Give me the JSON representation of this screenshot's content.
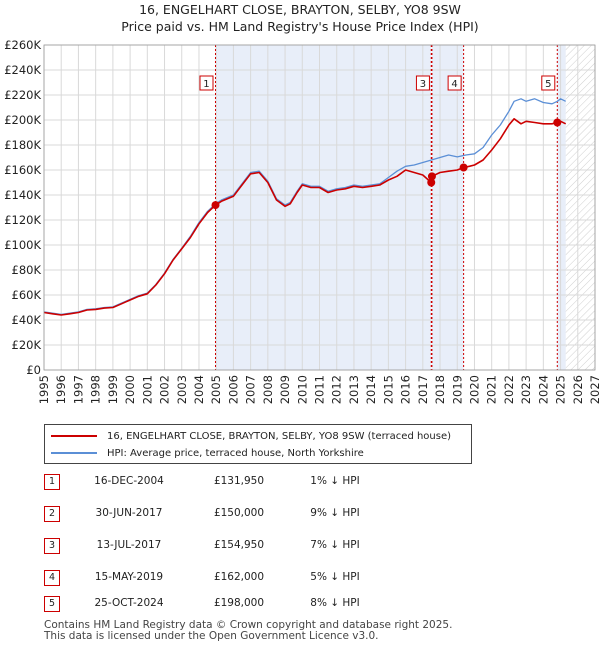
{
  "chart_data": {
    "type": "line",
    "title": "16, ENGELHART CLOSE, BRAYTON, SELBY, YO8 9SW",
    "subtitle": "Price paid vs. HM Land Registry's House Price Index (HPI)",
    "xlabel": "",
    "ylabel": "",
    "xlim": [
      1995,
      2027
    ],
    "ylim": [
      0,
      260000
    ],
    "x_ticks": [
      "1995",
      "1996",
      "1997",
      "1998",
      "1999",
      "2000",
      "2001",
      "2002",
      "2003",
      "2004",
      "2005",
      "2006",
      "2007",
      "2008",
      "2009",
      "2010",
      "2011",
      "2012",
      "2013",
      "2014",
      "2015",
      "2016",
      "2017",
      "2018",
      "2019",
      "2020",
      "2021",
      "2022",
      "2023",
      "2024",
      "2025",
      "2026",
      "2027"
    ],
    "y_ticks": [
      {
        "value": 0,
        "label": "£0"
      },
      {
        "value": 20000,
        "label": "£20K"
      },
      {
        "value": 40000,
        "label": "£40K"
      },
      {
        "value": 60000,
        "label": "£60K"
      },
      {
        "value": 80000,
        "label": "£80K"
      },
      {
        "value": 100000,
        "label": "£100K"
      },
      {
        "value": 120000,
        "label": "£120K"
      },
      {
        "value": 140000,
        "label": "£140K"
      },
      {
        "value": 160000,
        "label": "£160K"
      },
      {
        "value": 180000,
        "label": "£180K"
      },
      {
        "value": 200000,
        "label": "£200K"
      },
      {
        "value": 220000,
        "label": "£220K"
      },
      {
        "value": 240000,
        "label": "£240K"
      },
      {
        "value": 260000,
        "label": "£260K"
      }
    ],
    "grid": true,
    "series": [
      {
        "name": "16, ENGELHART CLOSE, BRAYTON, SELBY, YO8 9SW (terraced house)",
        "color": "#cc0000",
        "x": [
          1995.0,
          1995.5,
          1996.0,
          1996.5,
          1997.0,
          1997.5,
          1998.0,
          1998.5,
          1999.0,
          1999.5,
          2000.0,
          2000.5,
          2001.0,
          2001.5,
          2002.0,
          2002.5,
          2003.0,
          2003.5,
          2004.0,
          2004.5,
          2004.96,
          2005.3,
          2006.0,
          2006.5,
          2007.0,
          2007.5,
          2008.0,
          2008.5,
          2009.0,
          2009.3,
          2009.7,
          2010.0,
          2010.5,
          2011.0,
          2011.5,
          2012.0,
          2012.5,
          2013.0,
          2013.5,
          2014.0,
          2014.5,
          2015.0,
          2015.5,
          2016.0,
          2016.5,
          2017.0,
          2017.49,
          2017.53,
          2018.0,
          2018.5,
          2019.0,
          2019.37,
          2019.7,
          2020.0,
          2020.5,
          2021.0,
          2021.5,
          2022.0,
          2022.3,
          2022.7,
          2023.0,
          2023.5,
          2024.0,
          2024.5,
          2024.81,
          2025.0,
          2025.3
        ],
        "values": [
          46000,
          45000,
          44000,
          45000,
          46000,
          48000,
          48500,
          49500,
          50000,
          53000,
          56000,
          59000,
          61000,
          68000,
          77000,
          88000,
          97000,
          106000,
          117000,
          126000,
          131950,
          135000,
          139000,
          148000,
          157000,
          158000,
          150000,
          136000,
          131000,
          133000,
          142000,
          148000,
          146000,
          146000,
          142000,
          144000,
          145000,
          147000,
          146000,
          147000,
          148000,
          152000,
          155000,
          160000,
          158000,
          156000,
          150000,
          154950,
          158000,
          159000,
          160000,
          162000,
          163000,
          164000,
          168000,
          176000,
          185000,
          196000,
          201000,
          197000,
          199000,
          198000,
          197000,
          197000,
          198000,
          199000,
          197000
        ]
      },
      {
        "name": "HPI: Average price, terraced house, North Yorkshire",
        "color": "#5b8fd6",
        "x": [
          1995.0,
          1995.5,
          1996.0,
          1996.5,
          1997.0,
          1997.5,
          1998.0,
          1998.5,
          1999.0,
          1999.5,
          2000.0,
          2000.5,
          2001.0,
          2001.5,
          2002.0,
          2002.5,
          2003.0,
          2003.5,
          2004.0,
          2004.5,
          2004.96,
          2005.3,
          2006.0,
          2006.5,
          2007.0,
          2007.5,
          2008.0,
          2008.5,
          2009.0,
          2009.3,
          2009.7,
          2010.0,
          2010.5,
          2011.0,
          2011.5,
          2012.0,
          2012.5,
          2013.0,
          2013.5,
          2014.0,
          2014.5,
          2015.0,
          2015.5,
          2016.0,
          2016.5,
          2017.0,
          2017.5,
          2018.0,
          2018.5,
          2019.0,
          2019.5,
          2020.0,
          2020.5,
          2021.0,
          2021.5,
          2022.0,
          2022.3,
          2022.7,
          2023.0,
          2023.5,
          2024.0,
          2024.5,
          2024.81,
          2025.0,
          2025.3
        ],
        "values": [
          46500,
          45500,
          44500,
          45500,
          46500,
          48500,
          49000,
          50000,
          50500,
          53500,
          56500,
          59500,
          61500,
          68500,
          77500,
          88500,
          97500,
          107000,
          118000,
          127000,
          133000,
          136000,
          140000,
          149000,
          158000,
          159000,
          151000,
          137000,
          132000,
          134000,
          143000,
          149000,
          147000,
          147000,
          143000,
          145000,
          146000,
          148000,
          147000,
          148000,
          149000,
          154000,
          159000,
          163000,
          164000,
          166000,
          168000,
          170000,
          172000,
          170500,
          172000,
          173000,
          178000,
          188000,
          196000,
          207000,
          215000,
          217000,
          215000,
          217000,
          214000,
          213000,
          215000,
          217000,
          215000
        ]
      }
    ],
    "sales": [
      {
        "num": "1",
        "x": 2004.96,
        "value": 131950
      },
      {
        "num": "2",
        "x": 2017.49,
        "value": 150000
      },
      {
        "num": "3",
        "x": 2017.53,
        "value": 154950
      },
      {
        "num": "4",
        "x": 2019.37,
        "value": 162000
      },
      {
        "num": "5",
        "x": 2024.81,
        "value": 198000
      }
    ],
    "labeled_markers": [
      "1",
      "3",
      "4",
      "5"
    ],
    "shaded_ranges": [
      [
        2004.96,
        2017.49
      ],
      [
        2017.53,
        2019.37
      ],
      [
        2024.81,
        2025.3
      ]
    ],
    "hatched_from": 2025.3
  },
  "legend": {
    "property_label": "16, ENGELHART CLOSE, BRAYTON, SELBY, YO8 9SW (terraced house)",
    "hpi_label": "HPI: Average price, terraced house, North Yorkshire"
  },
  "sales_table": [
    {
      "num": "1",
      "date": "16-DEC-2004",
      "price": "£131,950",
      "hpi": "1% ↓ HPI"
    },
    {
      "num": "2",
      "date": "30-JUN-2017",
      "price": "£150,000",
      "hpi": "9% ↓ HPI"
    },
    {
      "num": "3",
      "date": "13-JUL-2017",
      "price": "£154,950",
      "hpi": "7% ↓ HPI"
    },
    {
      "num": "4",
      "date": "15-MAY-2019",
      "price": "£162,000",
      "hpi": "5% ↓ HPI"
    },
    {
      "num": "5",
      "date": "25-OCT-2024",
      "price": "£198,000",
      "hpi": "8% ↓ HPI"
    }
  ],
  "footer": {
    "line1": "Contains HM Land Registry data © Crown copyright and database right 2025.",
    "line2": "This data is licensed under the Open Government Licence v3.0."
  },
  "colors": {
    "property": "#cc0000",
    "hpi": "#5b8fd6",
    "shade": "#e8eef9",
    "grid": "#d9d9d9"
  }
}
